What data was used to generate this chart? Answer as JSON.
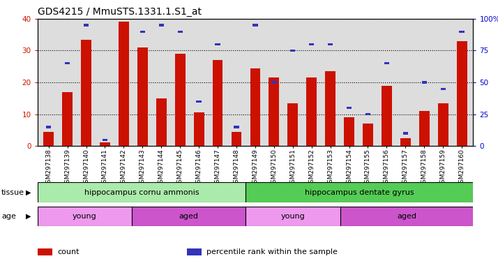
{
  "title": "GDS4215 / MmuSTS.1331.1.S1_at",
  "samples": [
    "GSM297138",
    "GSM297139",
    "GSM297140",
    "GSM297141",
    "GSM297142",
    "GSM297143",
    "GSM297144",
    "GSM297145",
    "GSM297146",
    "GSM297147",
    "GSM297148",
    "GSM297149",
    "GSM297150",
    "GSM297151",
    "GSM297152",
    "GSM297153",
    "GSM297154",
    "GSM297155",
    "GSM297156",
    "GSM297157",
    "GSM297158",
    "GSM297159",
    "GSM297160"
  ],
  "count_values": [
    4.5,
    17.0,
    33.5,
    1.2,
    39.0,
    31.0,
    15.0,
    29.0,
    10.5,
    27.0,
    4.5,
    24.5,
    21.5,
    13.5,
    21.5,
    23.5,
    9.0,
    7.0,
    19.0,
    2.5,
    11.0,
    13.5,
    33.0
  ],
  "percentile_values": [
    6.0,
    26.0,
    38.0,
    2.0,
    44.0,
    36.0,
    38.0,
    36.0,
    14.0,
    32.0,
    6.0,
    38.0,
    20.0,
    30.0,
    32.0,
    32.0,
    12.0,
    10.0,
    26.0,
    4.0,
    20.0,
    18.0,
    36.0
  ],
  "ylim_left": [
    0,
    40
  ],
  "ylim_right": [
    0,
    100
  ],
  "yticks_left": [
    0,
    10,
    20,
    30,
    40
  ],
  "yticks_right": [
    0,
    25,
    50,
    75,
    100
  ],
  "bar_color": "#cc1100",
  "blue_color": "#3333bb",
  "tissue_groups": [
    {
      "label": "hippocampus cornu ammonis",
      "start": 0,
      "end": 11,
      "color": "#aaeaaa"
    },
    {
      "label": "hippocampus dentate gyrus",
      "start": 11,
      "end": 23,
      "color": "#55cc55"
    }
  ],
  "age_groups": [
    {
      "label": "young",
      "start": 0,
      "end": 5,
      "color": "#ee99ee"
    },
    {
      "label": "aged",
      "start": 5,
      "end": 11,
      "color": "#cc55cc"
    },
    {
      "label": "young",
      "start": 11,
      "end": 16,
      "color": "#ee99ee"
    },
    {
      "label": "aged",
      "start": 16,
      "end": 23,
      "color": "#cc55cc"
    }
  ],
  "legend_items": [
    {
      "label": "count",
      "color": "#cc1100"
    },
    {
      "label": "percentile rank within the sample",
      "color": "#3333bb"
    }
  ],
  "tissue_label": "tissue",
  "age_label": "age",
  "bg_color": "#dddddd",
  "bar_width": 0.55,
  "title_fontsize": 10,
  "tick_fontsize": 6.5,
  "label_fontsize": 8,
  "axis_label_color_left": "#cc1100",
  "axis_label_color_right": "#0000cc"
}
